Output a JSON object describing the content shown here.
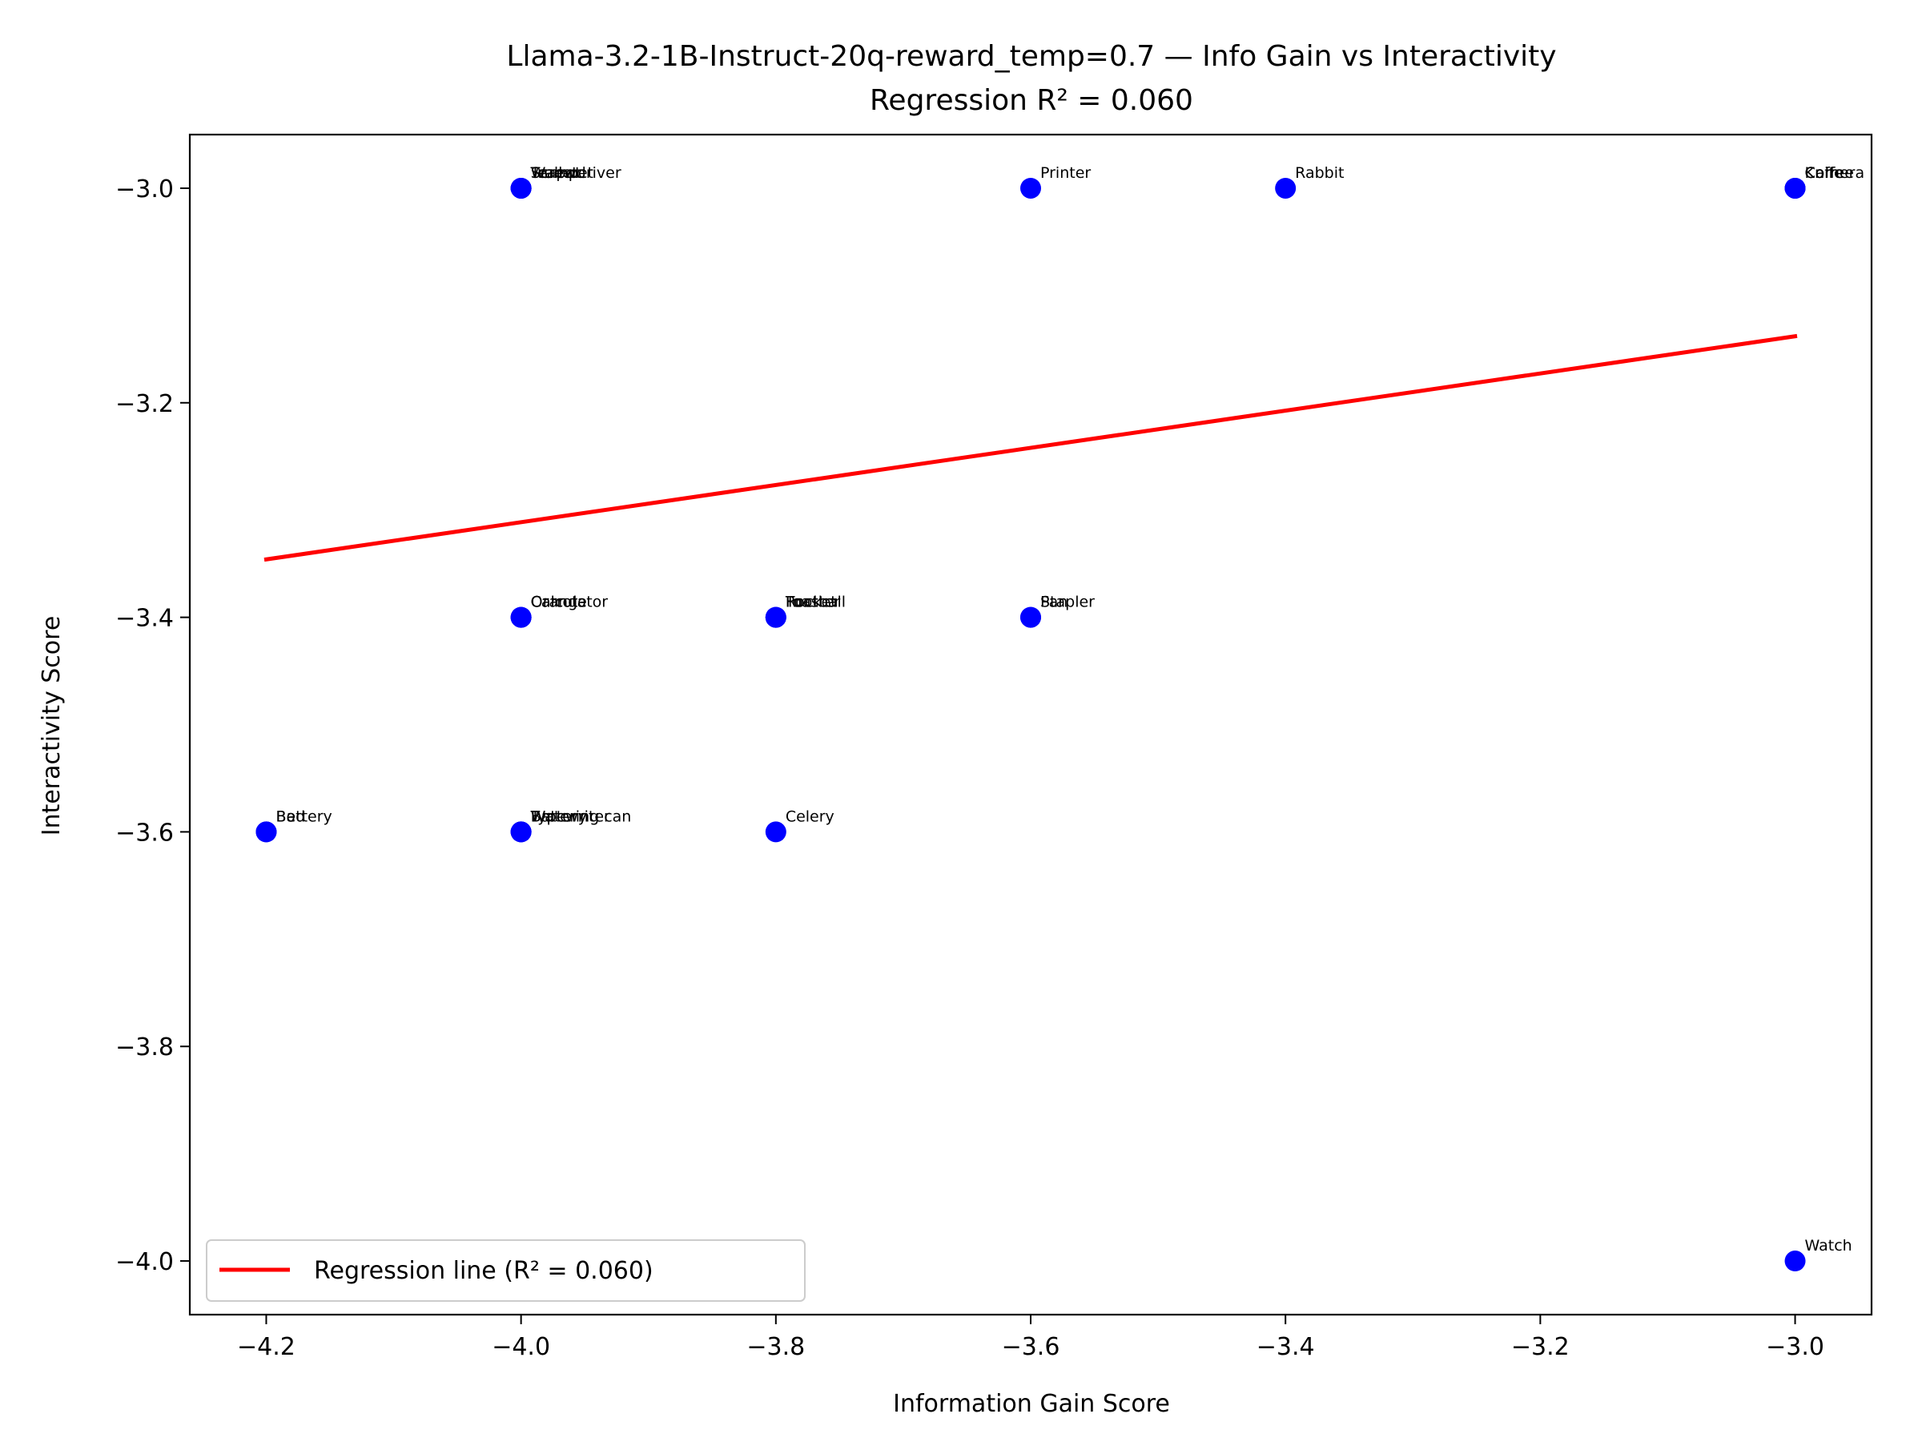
{
  "chart_data": {
    "type": "scatter",
    "title": "Llama-3.2-1B-Instruct-20q-reward_temp=0.7 — Info Gain vs Interactivity",
    "subtitle": "Regression R² = 0.060",
    "xlabel": "Information Gain Score",
    "ylabel": "Interactivity Score",
    "xlim": [
      -4.26,
      -2.94
    ],
    "ylim": [
      -4.05,
      -2.95
    ],
    "x_ticks": [
      -4.2,
      -4.0,
      -3.8,
      -3.6,
      -3.4,
      -3.2,
      -3.0
    ],
    "y_ticks": [
      -3.0,
      -3.2,
      -3.4,
      -3.6,
      -3.8,
      -4.0
    ],
    "x_tick_labels": [
      "−4.2",
      "−4.0",
      "−3.8",
      "−3.6",
      "−3.4",
      "−3.2",
      "−3.0"
    ],
    "y_tick_labels": [
      "−3.0",
      "−3.2",
      "−3.4",
      "−3.6",
      "−3.8",
      "−4.0"
    ],
    "grid": false,
    "point_color": "#0000ff",
    "line_color": "#ff0000",
    "points": [
      {
        "label": "Teapot",
        "x": -4.0,
        "y": -3.0
      },
      {
        "label": "Trumpet",
        "x": -4.0,
        "y": -3.0
      },
      {
        "label": "Wallet",
        "x": -4.0,
        "y": -3.0
      },
      {
        "label": "Screwdriver",
        "x": -4.0,
        "y": -3.0
      },
      {
        "label": "Printer",
        "x": -3.6,
        "y": -3.0
      },
      {
        "label": "Rabbit",
        "x": -3.4,
        "y": -3.0
      },
      {
        "label": "Camera",
        "x": -3.0,
        "y": -3.0
      },
      {
        "label": "Knife",
        "x": -3.0,
        "y": -3.0
      },
      {
        "label": "Coffee",
        "x": -3.0,
        "y": -3.0
      },
      {
        "label": "Calculator",
        "x": -4.0,
        "y": -3.4
      },
      {
        "label": "Carrot",
        "x": -4.0,
        "y": -3.4
      },
      {
        "label": "Orange",
        "x": -4.0,
        "y": -3.4
      },
      {
        "label": "Toaster",
        "x": -3.8,
        "y": -3.4
      },
      {
        "label": "Football",
        "x": -3.8,
        "y": -3.4
      },
      {
        "label": "Rocket",
        "x": -3.8,
        "y": -3.4
      },
      {
        "label": "Stapler",
        "x": -3.6,
        "y": -3.4
      },
      {
        "label": "Pan",
        "x": -3.6,
        "y": -3.4
      },
      {
        "label": "Battery",
        "x": -4.2,
        "y": -3.6
      },
      {
        "label": "Bed",
        "x": -4.2,
        "y": -3.6
      },
      {
        "label": "Watering can",
        "x": -4.0,
        "y": -3.6
      },
      {
        "label": "Typewriter",
        "x": -4.0,
        "y": -3.6
      },
      {
        "label": "Battery",
        "x": -4.0,
        "y": -3.6
      },
      {
        "label": "Celery",
        "x": -3.8,
        "y": -3.6
      },
      {
        "label": "Watch",
        "x": -3.0,
        "y": -4.0
      }
    ],
    "regression": {
      "x": [
        -4.2,
        -3.0
      ],
      "y": [
        -3.346,
        -3.138
      ]
    },
    "legend": {
      "label": "Regression line (R² = 0.060)",
      "placement": "lower-left"
    }
  }
}
